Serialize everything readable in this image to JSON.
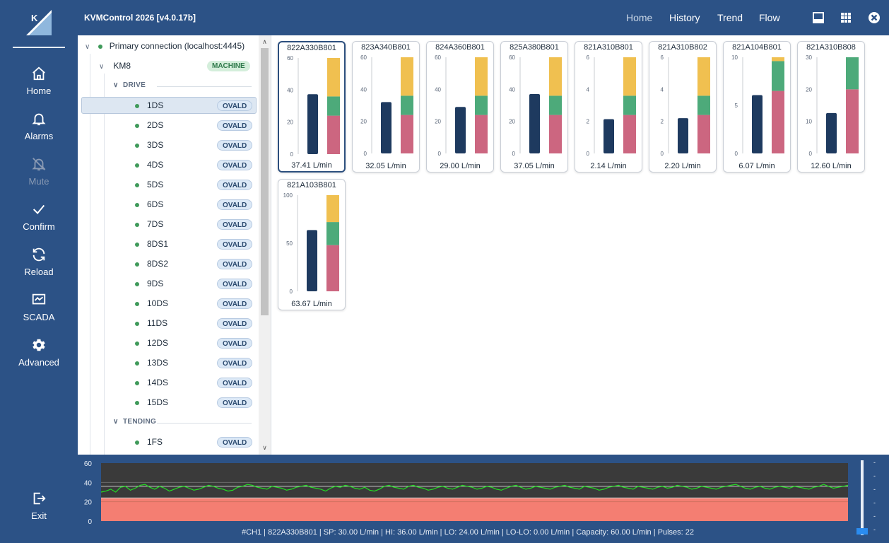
{
  "app": {
    "title": "KVMControl 2026 [v4.0.17b]"
  },
  "sidebar": {
    "items": [
      {
        "label": "Home",
        "icon": "home-icon",
        "enabled": true
      },
      {
        "label": "Alarms",
        "icon": "bell-icon",
        "enabled": true
      },
      {
        "label": "Mute",
        "icon": "bell-off-icon",
        "enabled": false
      },
      {
        "label": "Confirm",
        "icon": "check-icon",
        "enabled": true
      },
      {
        "label": "Reload",
        "icon": "reload-icon",
        "enabled": true
      },
      {
        "label": "SCADA",
        "icon": "scada-icon",
        "enabled": true
      },
      {
        "label": "Advanced",
        "icon": "gear-icon",
        "enabled": true
      }
    ],
    "exit_label": "Exit"
  },
  "topnav": {
    "items": [
      "Home",
      "History",
      "Trend",
      "Flow"
    ],
    "active": "Home"
  },
  "tree": {
    "connection": "Primary connection (localhost:4445)",
    "machine": {
      "name": "KM8",
      "badge": "MACHINE"
    },
    "groups": [
      {
        "name": "DRIVE",
        "items": [
          "1DS",
          "2DS",
          "3DS",
          "4DS",
          "5DS",
          "6DS",
          "7DS",
          "8DS1",
          "8DS2",
          "9DS",
          "10DS",
          "11DS",
          "12DS",
          "13DS",
          "14DS",
          "15DS"
        ]
      },
      {
        "name": "TENDING",
        "items": [
          "1FS"
        ]
      }
    ],
    "item_badge": "OVALD",
    "selected": "1DS"
  },
  "colors": {
    "bar": "#1e3a5f",
    "lolo": "#cc6680",
    "ok": "#4daa7a",
    "hi": "#f0c050",
    "trend_line": "#22dd22",
    "trend_alarm": "#f47e72",
    "trend_bg": "#3a3a3a"
  },
  "cards": [
    {
      "name": "822A330B801",
      "value": 37.41,
      "value_label": "37.41 L/min",
      "max": 60,
      "ticks": [
        "60",
        "40",
        "20",
        "0"
      ],
      "lo": 24,
      "hi": 36,
      "selected": true
    },
    {
      "name": "823A340B801",
      "value": 32.05,
      "value_label": "32.05 L/min",
      "max": 60,
      "ticks": [
        "60",
        "40",
        "20",
        "0"
      ],
      "lo": 24,
      "hi": 36
    },
    {
      "name": "824A360B801",
      "value": 29.0,
      "value_label": "29.00 L/min",
      "max": 60,
      "ticks": [
        "60",
        "40",
        "20",
        "0"
      ],
      "lo": 24,
      "hi": 36
    },
    {
      "name": "825A380B801",
      "value": 37.05,
      "value_label": "37.05 L/min",
      "max": 60,
      "ticks": [
        "60",
        "40",
        "20",
        "0"
      ],
      "lo": 24,
      "hi": 36
    },
    {
      "name": "821A310B801",
      "value": 2.14,
      "value_label": "2.14 L/min",
      "max": 6,
      "ticks": [
        "6",
        "4",
        "2",
        "0"
      ],
      "lo": 2.4,
      "hi": 3.6
    },
    {
      "name": "821A310B802",
      "value": 2.2,
      "value_label": "2.20 L/min",
      "max": 6,
      "ticks": [
        "6",
        "4",
        "2",
        "0"
      ],
      "lo": 2.4,
      "hi": 3.6
    },
    {
      "name": "821A104B801",
      "value": 6.07,
      "value_label": "6.07 L/min",
      "max": 10,
      "ticks": [
        "10",
        "5",
        "0"
      ],
      "lo": 6.5,
      "hi": 9.6
    },
    {
      "name": "821A310B808",
      "value": 12.6,
      "value_label": "12.60 L/min",
      "max": 30,
      "ticks": [
        "30",
        "20",
        "10",
        "0"
      ],
      "lo": 20,
      "hi": 30
    },
    {
      "name": "821A103B801",
      "value": 63.67,
      "value_label": "63.67 L/min",
      "max": 100,
      "ticks": [
        "100",
        "50",
        "0"
      ],
      "lo": 48,
      "hi": 72
    }
  ],
  "trend": {
    "y_ticks": [
      "60",
      "40",
      "20",
      "0"
    ],
    "ymax": 60,
    "lo": 24,
    "hi": 36,
    "samples": [
      30,
      31,
      33,
      30,
      35,
      36,
      32,
      34,
      37,
      38,
      35,
      33,
      36,
      34,
      31,
      33,
      35,
      36,
      34,
      32,
      33,
      35,
      37,
      36,
      34,
      33,
      31,
      32,
      35,
      36,
      38,
      37,
      35,
      34,
      33,
      36,
      35,
      34,
      32,
      33,
      35,
      36,
      37,
      35,
      34,
      33,
      31,
      34,
      36,
      35,
      37,
      36,
      34,
      33,
      35,
      32,
      31,
      33,
      36,
      37,
      35,
      34,
      33,
      36,
      37,
      35,
      34,
      32,
      33,
      35,
      36,
      34,
      33,
      35,
      37,
      36,
      35,
      33,
      34,
      36,
      35,
      33,
      32,
      34,
      36,
      37,
      35,
      33,
      34,
      36,
      35,
      34,
      33,
      35,
      36,
      37,
      35,
      34,
      33,
      36,
      35,
      34,
      32,
      33,
      35,
      36,
      37,
      35,
      34,
      33,
      36,
      35,
      34,
      33,
      35,
      36,
      34,
      35,
      37,
      36,
      35,
      33,
      34,
      36,
      35,
      34,
      33,
      35,
      36,
      37,
      38,
      36,
      34,
      33,
      35,
      36,
      34,
      33,
      35,
      36,
      35,
      34,
      36,
      35,
      34,
      33,
      35,
      36,
      38,
      36,
      34,
      35,
      36,
      37
    ],
    "status": "#CH1 | 822A330B801 | SP: 30.00 L/min | HI: 36.00 L/min | LO: 24.00 L/min | LO-LO: 0.00 L/min | Capacity: 60.00 L/min | Pulses: 22",
    "side_ticks": [
      "-",
      "-",
      "-",
      "-",
      "-",
      "-"
    ]
  }
}
